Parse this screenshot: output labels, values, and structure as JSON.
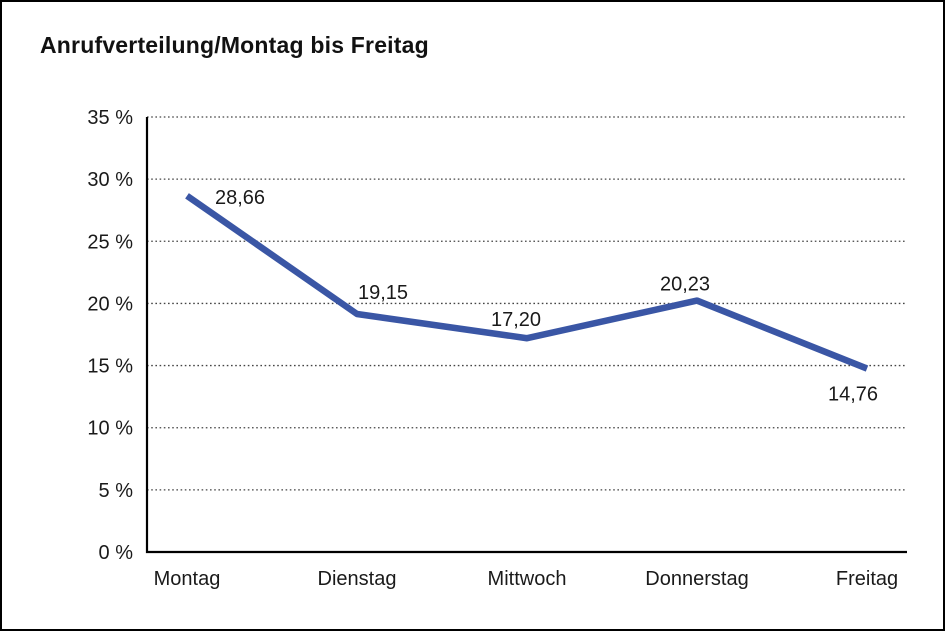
{
  "chart_data": {
    "type": "line",
    "title": "Anrufverteilung/Montag bis Freitag",
    "categories": [
      "Montag",
      "Dienstag",
      "Mittwoch",
      "Donnerstag",
      "Freitag"
    ],
    "series": [
      {
        "name": "Anrufverteilung",
        "values": [
          28.66,
          19.15,
          17.2,
          20.23,
          14.76
        ]
      }
    ],
    "value_labels": [
      "28,66",
      "19,15",
      "17,20",
      "20,23",
      "14,76"
    ],
    "yticks": [
      35,
      30,
      25,
      20,
      15,
      10,
      5,
      0
    ],
    "ytick_labels": [
      "35 %",
      "30 %",
      "25 %",
      "20 %",
      "15 %",
      "10 %",
      "5 %",
      "0 %"
    ],
    "ylim": [
      0,
      35
    ],
    "xlabel": "",
    "ylabel": "",
    "grid": "dotted-horizontal",
    "legend": "none",
    "line_color": "#3A56A5",
    "axis_color": "#000000",
    "gridline_color": "#444444",
    "text_color": "#1a1a1a",
    "background": "#FFFFFF",
    "border_color": "#000000"
  }
}
